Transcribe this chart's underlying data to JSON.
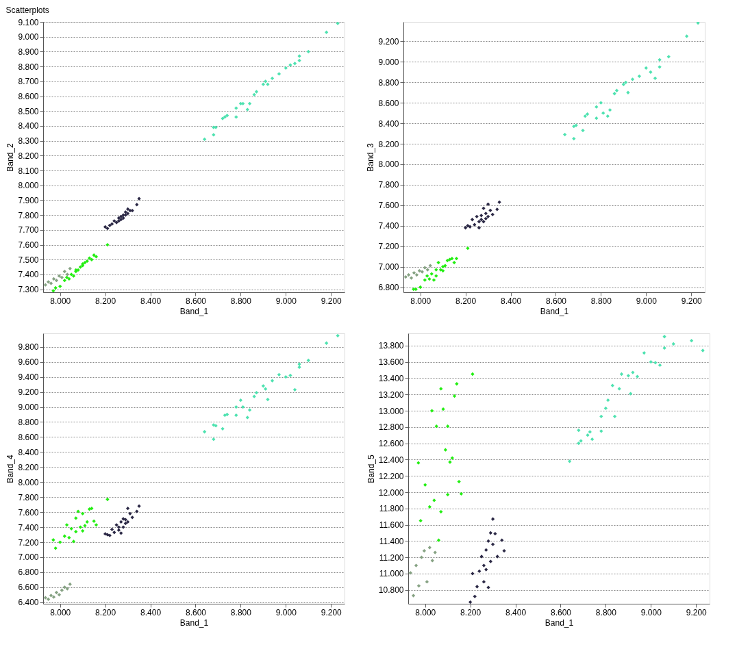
{
  "chart_data": [
    {
      "type": "scatter",
      "title": "Scatterplots",
      "xlabel": "Band_1",
      "ylabel": "Band_2",
      "marker": "diamond",
      "grid": "y",
      "xlim": [
        7.925,
        9.26
      ],
      "ylim": [
        7.28,
        9.1
      ],
      "xticks": [
        {
          "value": 8.0,
          "label": "8.000"
        },
        {
          "value": 8.2,
          "label": "8.200"
        },
        {
          "value": 8.4,
          "label": "8.400"
        },
        {
          "value": 8.6,
          "label": "8.600"
        },
        {
          "value": 8.8,
          "label": "8.800"
        },
        {
          "value": 9.0,
          "label": "9.000"
        },
        {
          "value": 9.2,
          "label": "9.200"
        }
      ],
      "yticks": [
        {
          "value": 7.3,
          "label": "7.300"
        },
        {
          "value": 7.4,
          "label": "7.400"
        },
        {
          "value": 7.5,
          "label": "7.500"
        },
        {
          "value": 7.6,
          "label": "7.600"
        },
        {
          "value": 7.7,
          "label": "7.700"
        },
        {
          "value": 7.8,
          "label": "7.800"
        },
        {
          "value": 7.9,
          "label": "7.900"
        },
        {
          "value": 8.0,
          "label": "8.000"
        },
        {
          "value": 8.1,
          "label": "8.100"
        },
        {
          "value": 8.2,
          "label": "8.200"
        },
        {
          "value": 8.3,
          "label": "8.300"
        },
        {
          "value": 8.4,
          "label": "8.400"
        },
        {
          "value": 8.5,
          "label": "8.500"
        },
        {
          "value": 8.6,
          "label": "8.600"
        },
        {
          "value": 8.7,
          "label": "8.700"
        },
        {
          "value": 8.8,
          "label": "8.800"
        },
        {
          "value": 8.9,
          "label": "8.900"
        },
        {
          "value": 9.0,
          "label": "9.000"
        },
        {
          "value": 9.1,
          "label": "9.100"
        }
      ],
      "series": [
        {
          "color": "#4ee2b0",
          "x": [
            8.64,
            8.68,
            8.68,
            8.69,
            8.72,
            8.73,
            8.74,
            8.78,
            8.78,
            8.8,
            8.81,
            8.83,
            8.84,
            8.86,
            8.87,
            8.9,
            8.91,
            8.92,
            8.94,
            8.97,
            9.0,
            9.02,
            9.04,
            9.06,
            9.06,
            9.1,
            9.18,
            9.23
          ],
          "values": [
            8.31,
            8.39,
            8.34,
            8.39,
            8.45,
            8.46,
            8.47,
            8.46,
            8.52,
            8.55,
            8.55,
            8.51,
            8.55,
            8.61,
            8.63,
            8.68,
            8.7,
            8.68,
            8.72,
            8.75,
            8.79,
            8.81,
            8.82,
            8.87,
            8.84,
            8.9,
            9.03,
            9.09
          ]
        },
        {
          "color": "#2b2845",
          "x": [
            8.2,
            8.21,
            8.22,
            8.23,
            8.24,
            8.25,
            8.26,
            8.26,
            8.27,
            8.27,
            8.28,
            8.28,
            8.29,
            8.29,
            8.3,
            8.3,
            8.31,
            8.32,
            8.34,
            8.35
          ],
          "values": [
            7.72,
            7.71,
            7.73,
            7.74,
            7.76,
            7.75,
            7.78,
            7.76,
            7.79,
            7.77,
            7.8,
            7.78,
            7.82,
            7.8,
            7.84,
            7.81,
            7.83,
            7.83,
            7.87,
            7.91
          ]
        },
        {
          "color": "#22ee11",
          "x": [
            7.97,
            7.98,
            8.0,
            8.02,
            8.03,
            8.04,
            8.05,
            8.06,
            8.07,
            8.07,
            8.08,
            8.09,
            8.1,
            8.1,
            8.11,
            8.12,
            8.13,
            8.14,
            8.15,
            8.16,
            8.21
          ],
          "values": [
            7.29,
            7.31,
            7.32,
            7.36,
            7.38,
            7.37,
            7.4,
            7.39,
            7.42,
            7.43,
            7.43,
            7.45,
            7.46,
            7.47,
            7.48,
            7.49,
            7.51,
            7.5,
            7.53,
            7.52,
            7.6
          ]
        },
        {
          "color": "#86a283",
          "x": [
            7.935,
            7.948,
            7.96,
            7.972,
            7.984,
            7.996,
            8.008,
            8.02,
            8.032,
            8.044
          ],
          "values": [
            7.33,
            7.35,
            7.34,
            7.37,
            7.36,
            7.39,
            7.38,
            7.42,
            7.4,
            7.44
          ]
        }
      ]
    },
    {
      "type": "scatter",
      "xlabel": "Band_1",
      "ylabel": "Band_3",
      "marker": "diamond",
      "grid": "y",
      "xlim": [
        7.925,
        9.26
      ],
      "ylim": [
        6.75,
        9.39
      ],
      "xticks": [
        {
          "value": 8.0,
          "label": "8.000"
        },
        {
          "value": 8.2,
          "label": "8.200"
        },
        {
          "value": 8.4,
          "label": "8.400"
        },
        {
          "value": 8.6,
          "label": "8.600"
        },
        {
          "value": 8.8,
          "label": "8.800"
        },
        {
          "value": 9.0,
          "label": "9.000"
        },
        {
          "value": 9.2,
          "label": "9.200"
        }
      ],
      "yticks": [
        {
          "value": 6.8,
          "label": "6.800"
        },
        {
          "value": 7.0,
          "label": "7.000"
        },
        {
          "value": 7.2,
          "label": "7.200"
        },
        {
          "value": 7.4,
          "label": "7.400"
        },
        {
          "value": 7.6,
          "label": "7.600"
        },
        {
          "value": 7.8,
          "label": "7.800"
        },
        {
          "value": 8.0,
          "label": "8.000"
        },
        {
          "value": 8.2,
          "label": "8.200"
        },
        {
          "value": 8.4,
          "label": "8.400"
        },
        {
          "value": 8.6,
          "label": "8.600"
        },
        {
          "value": 8.8,
          "label": "8.800"
        },
        {
          "value": 9.0,
          "label": "9.000"
        },
        {
          "value": 9.2,
          "label": "9.200"
        }
      ],
      "series": [
        {
          "color": "#4ee2b0",
          "x": [
            8.64,
            8.68,
            8.68,
            8.69,
            8.72,
            8.73,
            8.74,
            8.78,
            8.78,
            8.8,
            8.81,
            8.83,
            8.84,
            8.86,
            8.87,
            8.9,
            8.91,
            8.92,
            8.94,
            8.97,
            9.0,
            9.02,
            9.04,
            9.06,
            9.06,
            9.1,
            9.18,
            9.23
          ],
          "values": [
            8.29,
            8.37,
            8.25,
            8.38,
            8.33,
            8.47,
            8.49,
            8.45,
            8.56,
            8.6,
            8.5,
            8.47,
            8.53,
            8.69,
            8.72,
            8.78,
            8.8,
            8.7,
            8.83,
            8.86,
            8.94,
            8.9,
            8.84,
            9.02,
            8.95,
            9.05,
            9.25,
            9.38
          ]
        },
        {
          "color": "#2b2845",
          "x": [
            8.2,
            8.21,
            8.22,
            8.23,
            8.24,
            8.25,
            8.26,
            8.26,
            8.27,
            8.27,
            8.28,
            8.28,
            8.29,
            8.29,
            8.3,
            8.3,
            8.31,
            8.32,
            8.34,
            8.35
          ],
          "values": [
            7.38,
            7.4,
            7.39,
            7.46,
            7.41,
            7.49,
            7.44,
            7.38,
            7.5,
            7.46,
            7.57,
            7.44,
            7.52,
            7.47,
            7.61,
            7.49,
            7.55,
            7.51,
            7.56,
            7.63
          ]
        },
        {
          "color": "#22ee11",
          "x": [
            7.97,
            7.98,
            8.0,
            8.02,
            8.03,
            8.04,
            8.05,
            8.06,
            8.07,
            8.07,
            8.08,
            8.09,
            8.1,
            8.1,
            8.11,
            8.12,
            8.13,
            8.14,
            8.15,
            8.16,
            8.21
          ],
          "values": [
            6.78,
            6.78,
            6.8,
            6.87,
            6.91,
            6.88,
            6.93,
            6.87,
            6.97,
            6.91,
            7.04,
            6.97,
            7.0,
            6.96,
            7.01,
            7.06,
            7.07,
            7.08,
            7.04,
            7.08,
            7.18
          ]
        },
        {
          "color": "#86a283",
          "x": [
            7.935,
            7.948,
            7.96,
            7.972,
            7.984,
            7.996,
            8.008,
            8.02,
            8.032,
            8.044
          ],
          "values": [
            6.9,
            6.92,
            6.89,
            6.94,
            6.92,
            6.96,
            6.95,
            6.99,
            6.97,
            7.01
          ]
        }
      ]
    },
    {
      "type": "scatter",
      "xlabel": "Band_1",
      "ylabel": "Band_4",
      "marker": "diamond",
      "grid": "y",
      "xlim": [
        7.925,
        9.26
      ],
      "ylim": [
        6.38,
        9.98
      ],
      "xticks": [
        {
          "value": 8.0,
          "label": "8.000"
        },
        {
          "value": 8.2,
          "label": "8.200"
        },
        {
          "value": 8.4,
          "label": "8.400"
        },
        {
          "value": 8.6,
          "label": "8.600"
        },
        {
          "value": 8.8,
          "label": "8.800"
        },
        {
          "value": 9.0,
          "label": "9.000"
        },
        {
          "value": 9.2,
          "label": "9.200"
        }
      ],
      "yticks": [
        {
          "value": 6.4,
          "label": "6.400"
        },
        {
          "value": 6.6,
          "label": "6.600"
        },
        {
          "value": 6.8,
          "label": "6.800"
        },
        {
          "value": 7.0,
          "label": "7.000"
        },
        {
          "value": 7.2,
          "label": "7.200"
        },
        {
          "value": 7.4,
          "label": "7.400"
        },
        {
          "value": 7.6,
          "label": "7.600"
        },
        {
          "value": 7.8,
          "label": "7.800"
        },
        {
          "value": 8.0,
          "label": "8.000"
        },
        {
          "value": 8.2,
          "label": "8.200"
        },
        {
          "value": 8.4,
          "label": "8.400"
        },
        {
          "value": 8.6,
          "label": "8.600"
        },
        {
          "value": 8.8,
          "label": "8.800"
        },
        {
          "value": 9.0,
          "label": "9.000"
        },
        {
          "value": 9.2,
          "label": "9.200"
        },
        {
          "value": 9.4,
          "label": "9.400"
        },
        {
          "value": 9.6,
          "label": "9.600"
        },
        {
          "value": 9.8,
          "label": "9.800"
        }
      ],
      "series": [
        {
          "color": "#4ee2b0",
          "x": [
            8.64,
            8.68,
            8.68,
            8.69,
            8.72,
            8.73,
            8.74,
            8.78,
            8.78,
            8.8,
            8.81,
            8.83,
            8.84,
            8.86,
            8.87,
            8.9,
            8.91,
            8.92,
            8.94,
            8.97,
            9.0,
            9.02,
            9.04,
            9.06,
            9.06,
            9.1,
            9.18,
            9.23
          ],
          "values": [
            8.67,
            8.76,
            8.57,
            8.75,
            8.71,
            8.89,
            8.9,
            8.89,
            9.0,
            9.09,
            9.0,
            8.86,
            8.96,
            9.14,
            9.19,
            9.28,
            9.24,
            9.1,
            9.35,
            9.43,
            9.4,
            9.42,
            9.23,
            9.53,
            9.57,
            9.62,
            9.85,
            9.95
          ]
        },
        {
          "color": "#2b2845",
          "x": [
            8.2,
            8.21,
            8.22,
            8.23,
            8.24,
            8.25,
            8.26,
            8.26,
            8.27,
            8.27,
            8.28,
            8.28,
            8.29,
            8.29,
            8.3,
            8.3,
            8.31,
            8.32,
            8.34,
            8.35
          ],
          "values": [
            7.31,
            7.3,
            7.29,
            7.37,
            7.33,
            7.43,
            7.4,
            7.36,
            7.47,
            7.32,
            7.51,
            7.4,
            7.5,
            7.45,
            7.65,
            7.47,
            7.58,
            7.53,
            7.61,
            7.68
          ]
        },
        {
          "color": "#22ee11",
          "x": [
            7.97,
            7.98,
            8.0,
            8.02,
            8.03,
            8.04,
            8.05,
            8.06,
            8.07,
            8.07,
            8.08,
            8.09,
            8.1,
            8.1,
            8.11,
            8.12,
            8.13,
            8.14,
            8.15,
            8.16,
            8.21
          ],
          "values": [
            7.23,
            7.12,
            7.2,
            7.28,
            7.43,
            7.26,
            7.38,
            7.21,
            7.52,
            7.34,
            7.61,
            7.4,
            7.58,
            7.35,
            7.42,
            7.47,
            7.64,
            7.65,
            7.48,
            7.43,
            7.77
          ]
        },
        {
          "color": "#86a283",
          "x": [
            7.935,
            7.948,
            7.96,
            7.972,
            7.984,
            7.996,
            8.008,
            8.02,
            8.032,
            8.044
          ],
          "values": [
            6.46,
            6.44,
            6.49,
            6.47,
            6.53,
            6.5,
            6.56,
            6.6,
            6.58,
            6.64
          ]
        }
      ]
    },
    {
      "type": "scatter",
      "xlabel": "Band_1",
      "ylabel": "Band_5",
      "marker": "diamond",
      "grid": "y",
      "xlim": [
        7.925,
        9.26
      ],
      "ylim": [
        10.63,
        13.95
      ],
      "xticks": [
        {
          "value": 8.0,
          "label": "8.000"
        },
        {
          "value": 8.2,
          "label": "8.200"
        },
        {
          "value": 8.4,
          "label": "8.400"
        },
        {
          "value": 8.6,
          "label": "8.600"
        },
        {
          "value": 8.8,
          "label": "8.800"
        },
        {
          "value": 9.0,
          "label": "9.000"
        },
        {
          "value": 9.2,
          "label": "9.200"
        }
      ],
      "yticks": [
        {
          "value": 10.8,
          "label": "10.800"
        },
        {
          "value": 11.0,
          "label": "11.000"
        },
        {
          "value": 11.2,
          "label": "11.200"
        },
        {
          "value": 11.4,
          "label": "11.400"
        },
        {
          "value": 11.6,
          "label": "11.600"
        },
        {
          "value": 11.8,
          "label": "11.800"
        },
        {
          "value": 12.0,
          "label": "12.000"
        },
        {
          "value": 12.2,
          "label": "12.200"
        },
        {
          "value": 12.4,
          "label": "12.400"
        },
        {
          "value": 12.6,
          "label": "12.600"
        },
        {
          "value": 12.8,
          "label": "12.800"
        },
        {
          "value": 13.0,
          "label": "13.000"
        },
        {
          "value": 13.2,
          "label": "13.200"
        },
        {
          "value": 13.4,
          "label": "13.400"
        },
        {
          "value": 13.6,
          "label": "13.600"
        },
        {
          "value": 13.8,
          "label": "13.800"
        }
      ],
      "series": [
        {
          "color": "#4ee2b0",
          "x": [
            8.64,
            8.68,
            8.68,
            8.69,
            8.72,
            8.73,
            8.74,
            8.78,
            8.78,
            8.8,
            8.81,
            8.83,
            8.84,
            8.86,
            8.87,
            8.9,
            8.91,
            8.92,
            8.94,
            8.97,
            9.0,
            9.02,
            9.04,
            9.06,
            9.06,
            9.1,
            9.18,
            9.23
          ],
          "values": [
            12.38,
            12.76,
            12.6,
            12.63,
            12.7,
            12.74,
            12.65,
            12.93,
            12.75,
            13.03,
            13.13,
            13.31,
            12.93,
            13.27,
            13.45,
            13.43,
            13.21,
            13.47,
            13.42,
            13.71,
            13.6,
            13.59,
            13.56,
            13.77,
            13.91,
            13.82,
            13.86,
            13.74
          ]
        },
        {
          "color": "#2b2845",
          "x": [
            8.2,
            8.21,
            8.22,
            8.23,
            8.24,
            8.25,
            8.26,
            8.26,
            8.27,
            8.27,
            8.28,
            8.28,
            8.29,
            8.29,
            8.3,
            8.3,
            8.31,
            8.32,
            8.34,
            8.35
          ],
          "values": [
            10.65,
            11.0,
            10.72,
            10.84,
            11.03,
            11.21,
            10.9,
            11.1,
            11.29,
            11.05,
            11.4,
            10.83,
            11.5,
            11.15,
            11.67,
            11.36,
            11.49,
            11.21,
            11.41,
            11.28
          ]
        },
        {
          "color": "#22ee11",
          "x": [
            7.97,
            7.98,
            8.0,
            8.02,
            8.03,
            8.04,
            8.05,
            8.06,
            8.07,
            8.07,
            8.08,
            8.09,
            8.1,
            8.1,
            8.11,
            8.12,
            8.13,
            8.14,
            8.15,
            8.16,
            8.21
          ],
          "values": [
            12.36,
            11.65,
            12.09,
            11.82,
            13.0,
            11.9,
            12.81,
            11.41,
            11.76,
            13.27,
            13.02,
            12.52,
            11.97,
            12.81,
            12.37,
            12.42,
            13.18,
            13.33,
            12.13,
            11.98,
            13.45
          ]
        },
        {
          "color": "#86a283",
          "x": [
            7.935,
            7.948,
            7.96,
            7.972,
            7.984,
            7.996,
            8.008,
            8.02,
            8.032,
            8.044
          ],
          "values": [
            11.01,
            10.73,
            11.1,
            10.85,
            11.2,
            11.28,
            10.9,
            11.32,
            11.16,
            11.26
          ]
        }
      ]
    }
  ]
}
